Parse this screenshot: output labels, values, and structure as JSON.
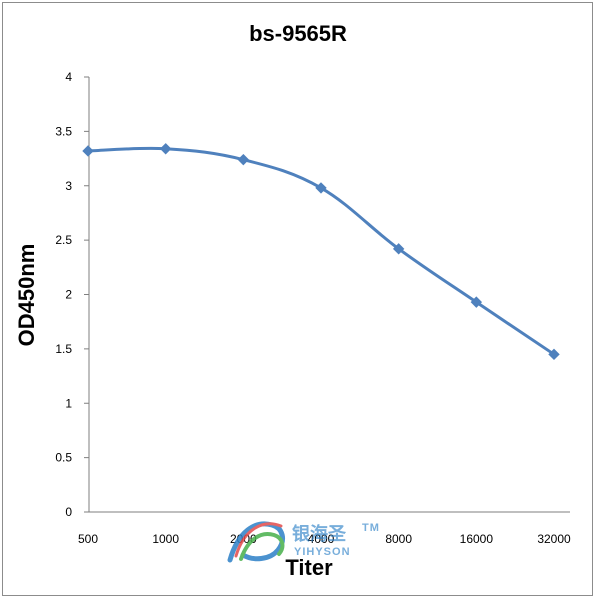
{
  "chart_data": {
    "type": "line",
    "title": "bs-9565R",
    "xlabel": "Titer",
    "ylabel": "OD450nm",
    "categories": [
      "500",
      "1000",
      "2000",
      "4000",
      "8000",
      "16000",
      "32000"
    ],
    "series": [
      {
        "values": [
          3.32,
          3.34,
          3.24,
          2.98,
          2.42,
          1.93,
          1.45
        ]
      }
    ],
    "ylim": [
      0,
      4
    ],
    "yticks": [
      "0",
      "0.5",
      "1",
      "1.5",
      "2",
      "2.5",
      "3",
      "3.5",
      "4"
    ],
    "grid": false,
    "line_color": "#4f81bd"
  },
  "watermark": {
    "brand_cn": "银海圣",
    "brand_en": "YIHYSON",
    "tm": "TM"
  }
}
